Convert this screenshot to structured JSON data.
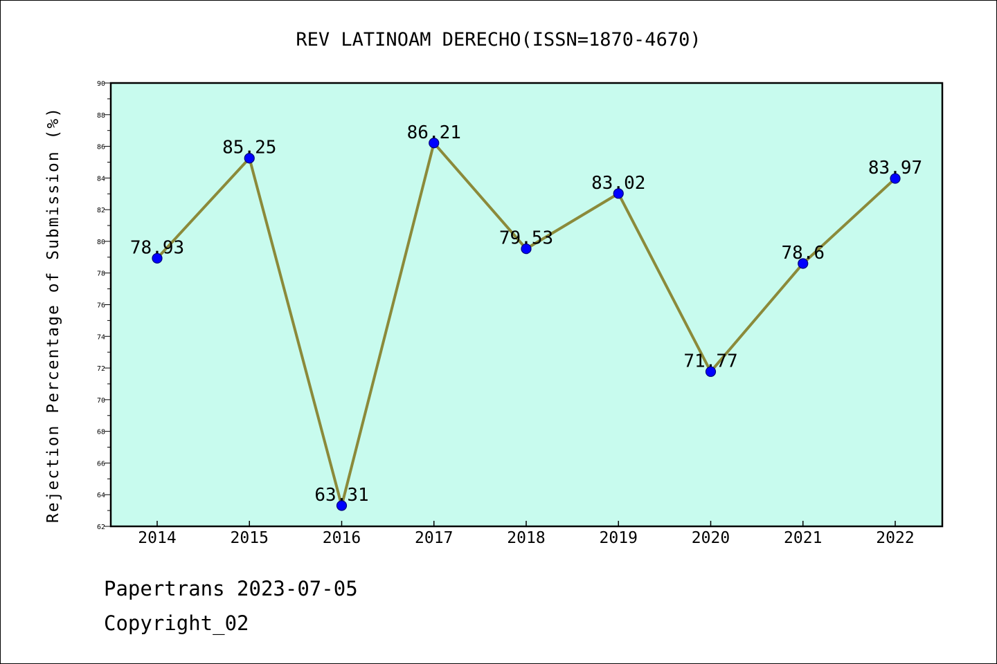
{
  "chart_data": {
    "type": "line",
    "title": "REV LATINOAM DERECHO(ISSN=1870-4670)",
    "xlabel": "",
    "ylabel": "Rejection Percentage of Submission (%)",
    "categories": [
      "2014",
      "2015",
      "2016",
      "2017",
      "2018",
      "2019",
      "2020",
      "2021",
      "2022"
    ],
    "series": [
      {
        "values": [
          78.93,
          85.25,
          63.31,
          86.21,
          79.53,
          83.02,
          71.77,
          78.6,
          83.97
        ],
        "labels": [
          "78.93",
          "85.25",
          "63.31",
          "86.21",
          "79.53",
          "83.02",
          "71.77",
          "78.6",
          "83.97"
        ]
      }
    ],
    "ylim": [
      62,
      90
    ],
    "yticks": [
      62,
      64,
      66,
      68,
      70,
      72,
      74,
      76,
      78,
      80,
      82,
      84,
      86,
      88,
      90
    ],
    "grid": false,
    "legend": "none",
    "colors": {
      "plot_background": "#c8fbee",
      "line": "#8b8a3a",
      "marker": "#0000ff",
      "axis": "#000000"
    }
  },
  "footer": {
    "source": "Papertrans 2023-07-05",
    "copyright": "Copyright_02"
  }
}
